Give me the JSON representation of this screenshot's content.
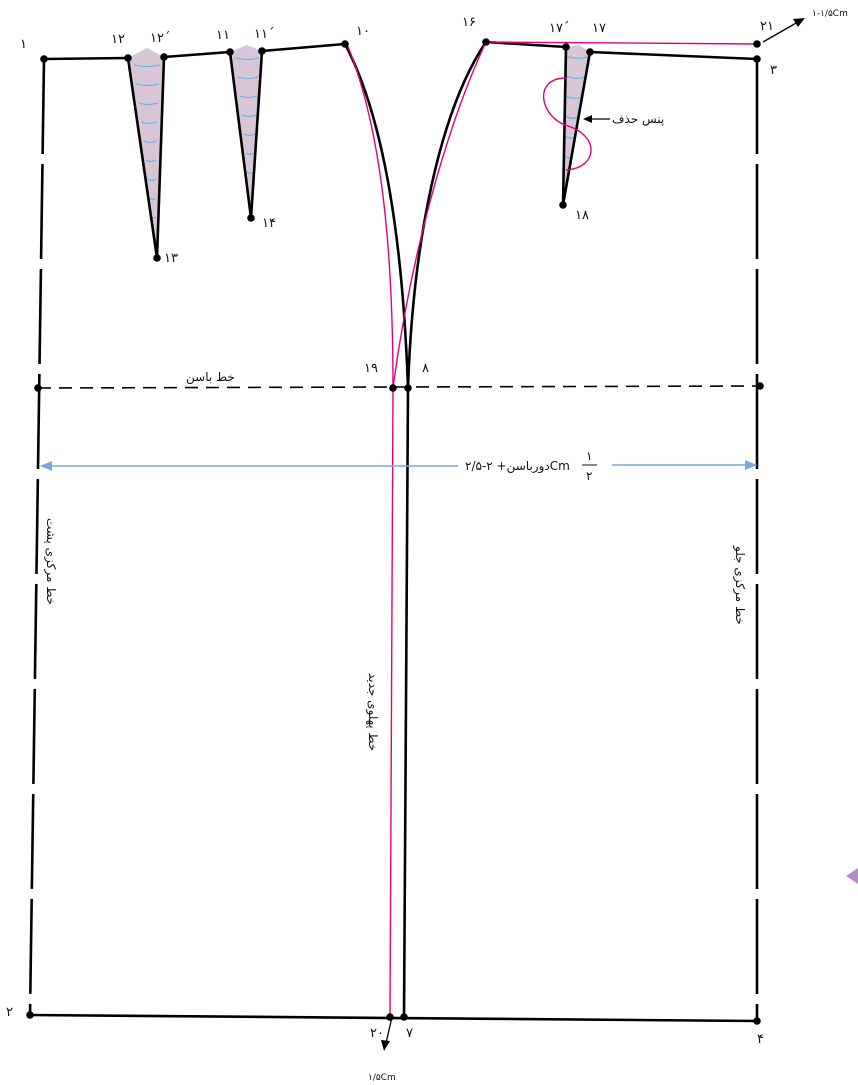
{
  "colors": {
    "outline": "#000000",
    "new_side_line": "#e4007c",
    "dart_fill": "#d8c6d6",
    "dart_hatch": "#5fb0e6",
    "measure_arrow": "#7aa9d6",
    "page_marker": "#b48cc8"
  },
  "points": {
    "p1": "۱",
    "p2": "۲",
    "p3": "۳",
    "p4": "۴",
    "p7": "۷",
    "p8": "۸",
    "p10": "۱۰",
    "p11": "۱۱",
    "p11b": "۱۱΄",
    "p12": "۱۲",
    "p12b": "۱۲΄",
    "p13": "۱۳",
    "p14": "۱۴",
    "p16": "۱۶",
    "p17": "۱۷",
    "p17b": "۱۷΄",
    "p18": "۱۸",
    "p19": "۱۹",
    "p20": "۲۰",
    "p21": "۲۱"
  },
  "labels": {
    "hip_line": "خط باسن",
    "half_hip_measure": "دورباسن+ ۲-۲/۵Cm",
    "half_fraction_num": "۱",
    "half_fraction_den": "۲",
    "dart_removal": "پنس حذف",
    "back_center_line": "خط مرکزی پشت",
    "front_center_line": "خط مرکزی جلو",
    "new_side_line": "خط پهلوی جدید",
    "top_extension": "۱-۱/۵Cm",
    "hem_extension": "۱/۵Cm"
  }
}
